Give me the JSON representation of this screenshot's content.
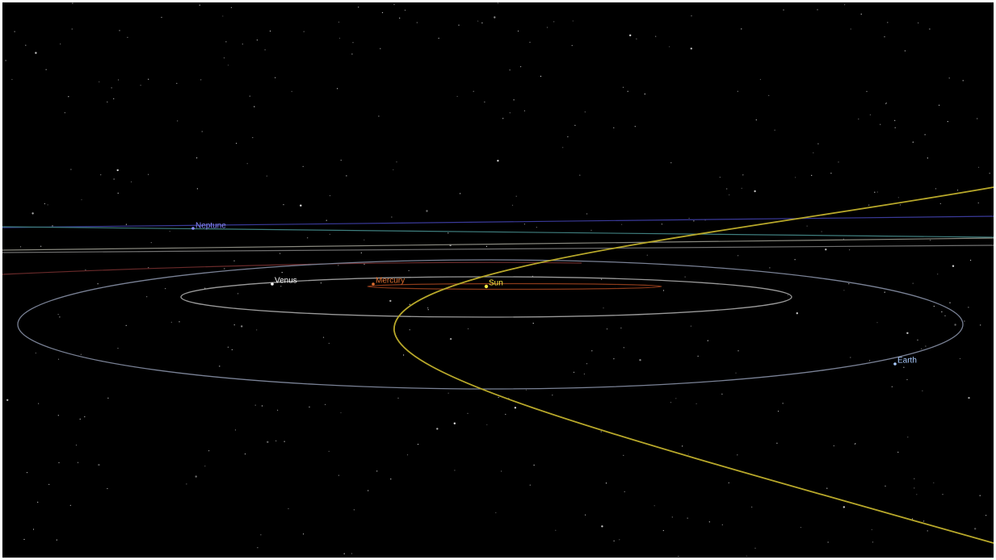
{
  "bodies": [
    {
      "label": "Neptune"
    },
    {
      "label": "Venus"
    },
    {
      "label": "Mercury"
    },
    {
      "label": "Sun"
    },
    {
      "label": "Earth"
    }
  ]
}
